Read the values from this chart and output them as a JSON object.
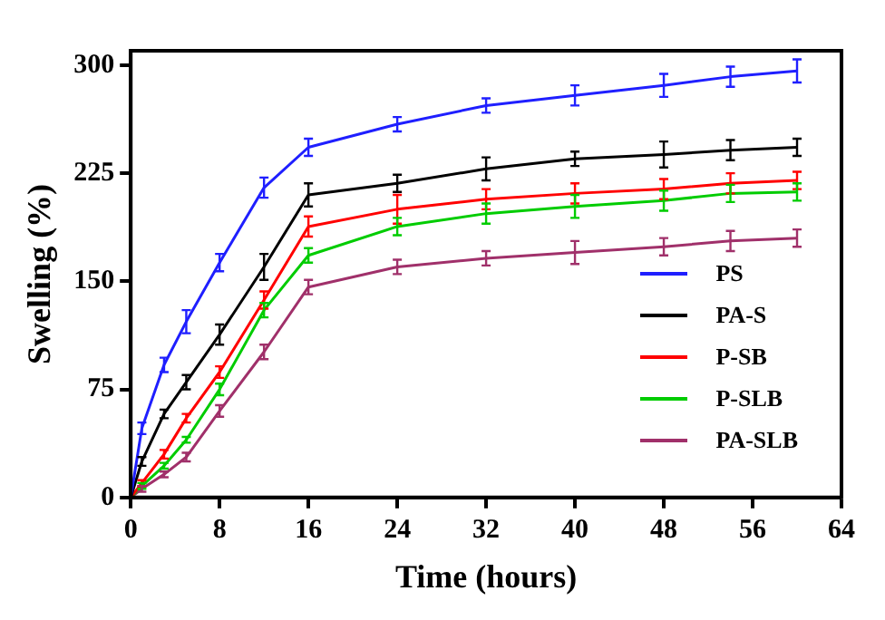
{
  "chart_data": {
    "type": "line",
    "xlabel": "Time (hours)",
    "ylabel": "Swelling (%)",
    "x": [
      0,
      1,
      3,
      5,
      8,
      12,
      16,
      24,
      32,
      40,
      48,
      54,
      60
    ],
    "xlim": [
      0,
      64
    ],
    "xticks": [
      0,
      8,
      16,
      24,
      32,
      40,
      48,
      56,
      64
    ],
    "ylim": [
      0,
      310
    ],
    "yticks": [
      0,
      75,
      150,
      225,
      300
    ],
    "grid": false,
    "legend": "bottom right",
    "line_style": "solid",
    "series": [
      {
        "name": "PS",
        "color": "#1f1fff",
        "values": [
          0,
          48,
          92,
          122,
          163,
          215,
          243,
          259,
          272,
          279,
          286,
          292,
          296
        ],
        "errors": [
          0,
          4,
          5,
          8,
          6,
          7,
          6,
          5,
          5,
          7,
          8,
          7,
          8
        ]
      },
      {
        "name": "PA-S",
        "color": "#000000",
        "values": [
          0,
          25,
          58,
          80,
          113,
          160,
          210,
          218,
          228,
          235,
          238,
          241,
          243
        ],
        "errors": [
          0,
          3,
          3,
          5,
          7,
          9,
          8,
          6,
          8,
          5,
          9,
          7,
          6
        ]
      },
      {
        "name": "P-SB",
        "color": "#ff0000",
        "values": [
          0,
          10,
          30,
          55,
          87,
          137,
          188,
          200,
          207,
          211,
          214,
          218,
          220
        ],
        "errors": [
          0,
          2,
          3,
          3,
          4,
          6,
          7,
          10,
          7,
          7,
          7,
          7,
          6
        ]
      },
      {
        "name": "P-SLB",
        "color": "#00cc00",
        "values": [
          0,
          8,
          22,
          40,
          75,
          130,
          168,
          188,
          197,
          202,
          206,
          211,
          212
        ],
        "errors": [
          0,
          2,
          2,
          2,
          4,
          5,
          5,
          6,
          7,
          8,
          7,
          6,
          6
        ]
      },
      {
        "name": "PA-SLB",
        "color": "#a0306a",
        "values": [
          0,
          6,
          16,
          28,
          60,
          101,
          146,
          160,
          166,
          170,
          174,
          178,
          180
        ],
        "errors": [
          0,
          2,
          2,
          3,
          4,
          5,
          5,
          5,
          5,
          8,
          6,
          7,
          6
        ]
      }
    ]
  }
}
